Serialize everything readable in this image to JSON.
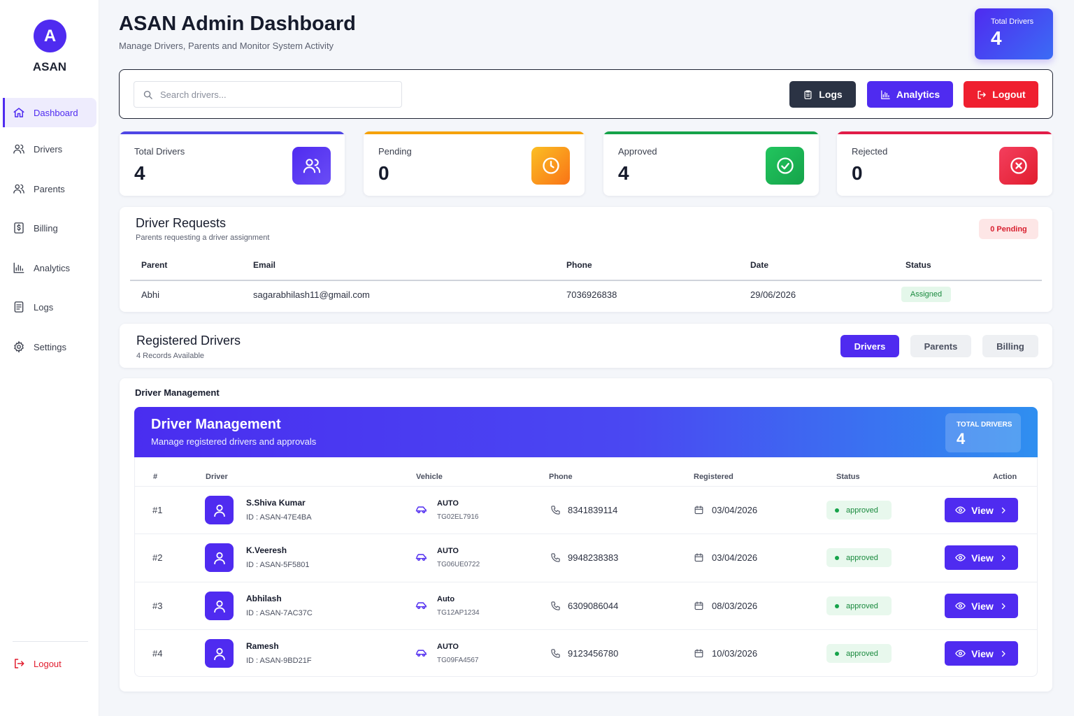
{
  "brand": {
    "logo_letter": "A",
    "name": "ASAN"
  },
  "sidebar": {
    "items": [
      {
        "label": "Dashboard",
        "icon": "home-icon",
        "active": true
      },
      {
        "label": "Drivers",
        "icon": "users-icon"
      },
      {
        "label": "Parents",
        "icon": "users-icon"
      },
      {
        "label": "Billing",
        "icon": "dollar-icon"
      },
      {
        "label": "Analytics",
        "icon": "bar-chart-icon"
      },
      {
        "label": "Logs",
        "icon": "document-icon"
      },
      {
        "label": "Settings",
        "icon": "gear-icon"
      }
    ],
    "logout_label": "Logout"
  },
  "header": {
    "title": "ASAN Admin Dashboard",
    "subtitle": "Manage Drivers, Parents and Monitor System Activity",
    "total_label": "Total Drivers",
    "total_value": "4"
  },
  "toolbar": {
    "search_placeholder": "Search drivers...",
    "logs_label": "Logs",
    "analytics_label": "Analytics",
    "logout_label": "Logout"
  },
  "stats": [
    {
      "label": "Total Drivers",
      "value": "4",
      "color": "#4f2bf0",
      "icon": "users-icon"
    },
    {
      "label": "Pending",
      "value": "0",
      "color": "#f59e0b",
      "icon": "clock-icon"
    },
    {
      "label": "Approved",
      "value": "4",
      "color": "#16a34a",
      "icon": "check-circle-icon"
    },
    {
      "label": "Rejected",
      "value": "0",
      "color": "#e11d48",
      "icon": "x-circle-icon"
    }
  ],
  "requests": {
    "title": "Driver Requests",
    "subtitle": "Parents requesting a driver assignment",
    "pending_badge": "0 Pending",
    "columns": [
      "Parent",
      "Email",
      "Phone",
      "Date",
      "Status"
    ],
    "rows": [
      {
        "parent": "Abhi",
        "email": "sagarabhilash11@gmail.com",
        "phone": "7036926838",
        "date": "29/06/2026",
        "status": "Assigned"
      }
    ]
  },
  "registered": {
    "title": "Registered Drivers",
    "subtitle": "4 Records Available",
    "tabs": [
      "Drivers",
      "Parents",
      "Billing"
    ],
    "active_tab": "Drivers"
  },
  "management": {
    "section_label": "Driver Management",
    "banner_title": "Driver Management",
    "banner_subtitle": "Manage registered drivers and approvals",
    "count_label": "TOTAL DRIVERS",
    "count_value": "4",
    "columns": [
      "#",
      "Driver",
      "Vehicle",
      "Phone",
      "Registered",
      "Status",
      "Action"
    ],
    "view_label": "View",
    "rows": [
      {
        "num": "#1",
        "name": "S.Shiva Kumar",
        "id": "ID : ASAN-47E4BA",
        "vehicle_type": "AUTO",
        "vehicle_no": "TG02EL7916",
        "phone": "8341839114",
        "registered": "03/04/2026",
        "status": "approved"
      },
      {
        "num": "#2",
        "name": "K.Veeresh",
        "id": "ID : ASAN-5F5801",
        "vehicle_type": "AUTO",
        "vehicle_no": "TG06UE0722",
        "phone": "9948238383",
        "registered": "03/04/2026",
        "status": "approved"
      },
      {
        "num": "#3",
        "name": "Abhilash",
        "id": "ID : ASAN-7AC37C",
        "vehicle_type": "Auto",
        "vehicle_no": "TG12AP1234",
        "phone": "6309086044",
        "registered": "08/03/2026",
        "status": "approved"
      },
      {
        "num": "#4",
        "name": "Ramesh",
        "id": "ID : ASAN-9BD21F",
        "vehicle_type": "AUTO",
        "vehicle_no": "TG09FA4567",
        "phone": "9123456780",
        "registered": "10/03/2026",
        "status": "approved"
      }
    ]
  }
}
